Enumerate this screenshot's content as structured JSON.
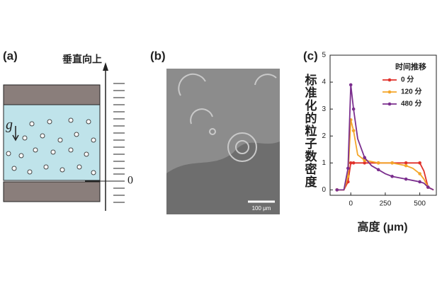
{
  "panel_a": {
    "label": "(a)",
    "axis_label": "垂直向上",
    "g_label": "g",
    "zero_label": "0"
  },
  "panel_b": {
    "label": "(b)",
    "scale_bar": "100 μm"
  },
  "chart_data": {
    "type": "line",
    "panel_label": "(c)",
    "x_label": "高度 (μm)",
    "y_label": "标准化的粒子数密度",
    "legend_title": "时间推移",
    "xlim": [
      -150,
      620
    ],
    "ylim": [
      -0.2,
      5
    ],
    "xticks": [
      0,
      250,
      500
    ],
    "yticks": [
      0,
      1,
      2,
      3,
      4,
      5
    ],
    "x": [
      -100,
      -50,
      -20,
      0,
      20,
      50,
      100,
      150,
      200,
      250,
      300,
      350,
      400,
      450,
      500,
      530,
      560,
      600
    ],
    "series": [
      {
        "name": "0 分",
        "color": "#e0312a",
        "values": [
          0,
          0,
          0.3,
          1.0,
          1.0,
          1.0,
          1.0,
          1.0,
          1.0,
          1.0,
          1.0,
          1.0,
          1.0,
          1.0,
          1.0,
          0.7,
          0.1,
          0
        ]
      },
      {
        "name": "120 分",
        "color": "#f4a62a",
        "values": [
          0,
          0,
          0.5,
          2.6,
          2.2,
          1.3,
          1.1,
          1.05,
          1.0,
          1.0,
          1.0,
          0.95,
          0.9,
          0.8,
          0.6,
          0.4,
          0.1,
          0
        ]
      },
      {
        "name": "480 分",
        "color": "#7b2f8e",
        "values": [
          0,
          0,
          0.8,
          3.9,
          3.0,
          1.9,
          1.2,
          0.9,
          0.75,
          0.6,
          0.5,
          0.45,
          0.4,
          0.35,
          0.3,
          0.25,
          0.1,
          0
        ]
      }
    ]
  }
}
